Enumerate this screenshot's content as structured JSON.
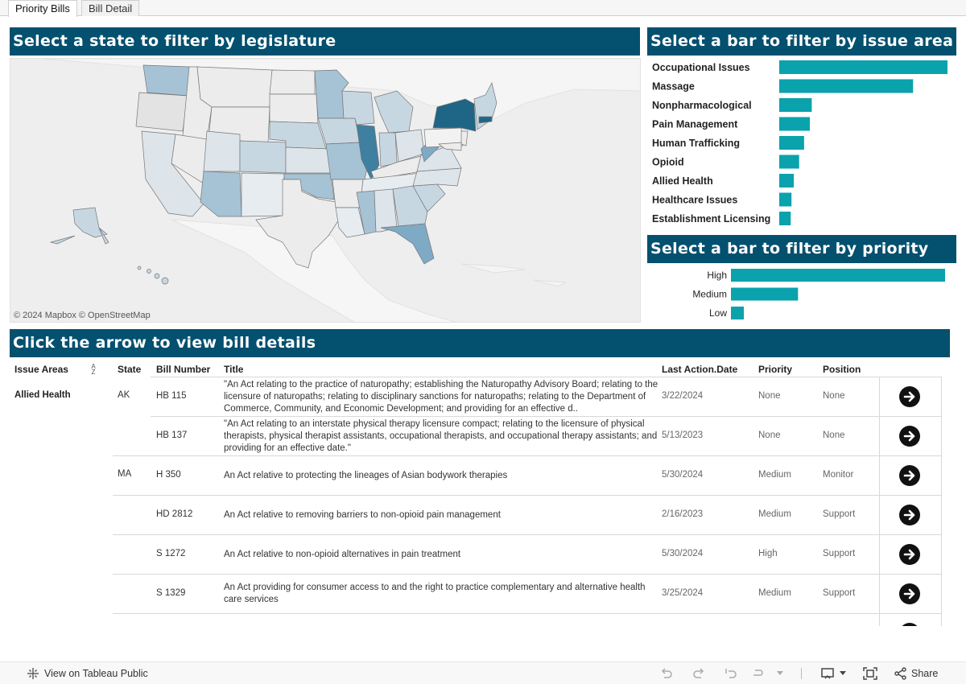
{
  "tabs": [
    {
      "label": "Priority Bills",
      "active": true
    },
    {
      "label": "Bill Detail",
      "active": false
    }
  ],
  "map_section": {
    "header": "Select a state to filter by legislature",
    "attribution": "© 2024 Mapbox  © OpenStreetMap"
  },
  "issue_section": {
    "header": "Select a bar to filter by issue area"
  },
  "priority_section": {
    "header": "Select a bar to filter by priority"
  },
  "table_section": {
    "header": "Click the arrow to view bill details"
  },
  "colors": {
    "header_bg": "#03506f",
    "bar": "#0aa2ad",
    "map_dark": "#1f6585",
    "map_light": "#c7d7e2"
  },
  "chart_data": [
    {
      "type": "bar",
      "orientation": "horizontal",
      "categories": [
        "Occupational Issues",
        "Massage",
        "Nonpharmacological",
        "Pain Management",
        "Human Trafficking",
        "Opioid",
        "Allied Health",
        "Healthcare Issues",
        "Establishment Licensing"
      ],
      "values": [
        44,
        35,
        8.5,
        8,
        6.5,
        5.2,
        3.8,
        3.2,
        3
      ],
      "xlim": [
        0,
        44
      ]
    },
    {
      "type": "bar",
      "orientation": "horizontal",
      "categories": [
        "High",
        "Medium",
        "Low"
      ],
      "values": [
        83,
        26,
        5
      ],
      "xlim": [
        0,
        83
      ]
    }
  ],
  "table": {
    "columns": {
      "issue_areas": "Issue Areas",
      "state": "State",
      "bill_number": "Bill Number",
      "title": "Title",
      "last_action": "Last Action.Date",
      "priority": "Priority",
      "position": "Position"
    },
    "sort_icon": "sort-az-icon",
    "group": "Allied Health",
    "states": [
      "AK",
      "MA"
    ],
    "rows": [
      {
        "bill": "HB 115",
        "title": "\"An Act relating to the practice of naturopathy; establishing the Naturopathy Advisory Board; relating to the licensure of naturopaths; relating to disciplinary sanctions for naturopaths; relating to the Department of Commerce, Community, and Economic Development; and providing for an effective d..",
        "date": "3/22/2024",
        "priority": "None",
        "position": "None"
      },
      {
        "bill": "HB 137",
        "title": "\"An Act relating to an interstate physical therapy licensure compact; relating to the licensure of physical therapists, physical therapist assistants, occupational therapists, and occupational therapy assistants; and providing for an effective date.\"",
        "date": "5/13/2023",
        "priority": "None",
        "position": "None"
      },
      {
        "bill": "H 350",
        "title": "An Act relative to protecting the lineages of Asian bodywork therapies",
        "date": "5/30/2024",
        "priority": "Medium",
        "position": "Monitor"
      },
      {
        "bill": "HD 2812",
        "title": "An Act relative to removing barriers to non-opioid pain management",
        "date": "2/16/2023",
        "priority": "Medium",
        "position": "Support"
      },
      {
        "bill": "S 1272",
        "title": "An Act relative to non-opioid alternatives in pain treatment",
        "date": "5/30/2024",
        "priority": "High",
        "position": "Support"
      },
      {
        "bill": "S 1329",
        "title": "An Act providing for consumer access to and the right to practice complementary and alternative health care services",
        "date": "3/25/2024",
        "priority": "Medium",
        "position": "Support"
      }
    ]
  },
  "footer": {
    "view_label": "View on Tableau Public",
    "share_label": "Share"
  }
}
